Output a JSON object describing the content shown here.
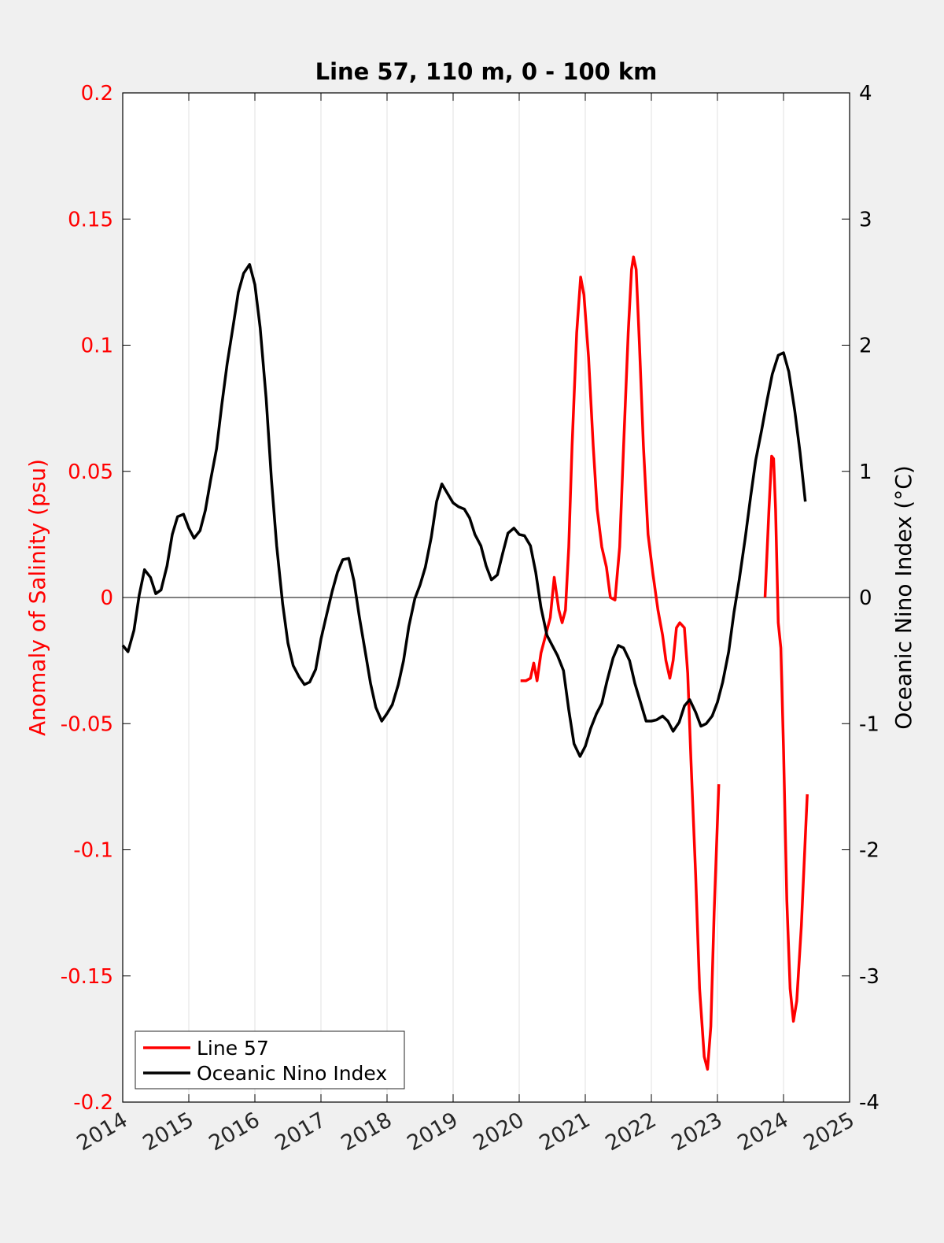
{
  "chart_data": {
    "type": "line",
    "title": "Line 57, 110 m, 0 - 100 km",
    "xlabel": "",
    "ylabel_left": "Anomaly of Salinity (psu)",
    "ylabel_right": "Oceanic Nino Index (°C)",
    "xlim": [
      2014,
      2025
    ],
    "ylim_left": [
      -0.2,
      0.2
    ],
    "ylim_right": [
      -4,
      4
    ],
    "x_ticks": [
      "2014",
      "2015",
      "2016",
      "2017",
      "2018",
      "2019",
      "2020",
      "2021",
      "2022",
      "2023",
      "2024",
      "2025"
    ],
    "y_ticks_left": [
      "0.2",
      "0.15",
      "0.1",
      "0.05",
      "0",
      "-0.05",
      "-0.1",
      "-0.15",
      "-0.2"
    ],
    "y_ticks_right": [
      "4",
      "3",
      "2",
      "1",
      "0",
      "-1",
      "-2",
      "-3",
      "-4"
    ],
    "grid": "vertical",
    "legend_placement": "bottom-left",
    "colors": {
      "line57": "#ff0000",
      "oni": "#000000",
      "left_axis": "#ff0000",
      "right_axis": "#000000"
    },
    "series": [
      {
        "name": "Line 57",
        "axis": "left",
        "color": "#ff0000",
        "segments": [
          [
            [
              2020.02,
              -0.033
            ],
            [
              2020.1,
              -0.033
            ],
            [
              2020.17,
              -0.032
            ],
            [
              2020.22,
              -0.026
            ],
            [
              2020.27,
              -0.033
            ],
            [
              2020.33,
              -0.022
            ],
            [
              2020.4,
              -0.015
            ],
            [
              2020.47,
              -0.008
            ],
            [
              2020.53,
              0.008
            ],
            [
              2020.6,
              -0.005
            ],
            [
              2020.65,
              -0.01
            ],
            [
              2020.7,
              -0.005
            ],
            [
              2020.75,
              0.02
            ],
            [
              2020.8,
              0.06
            ],
            [
              2020.87,
              0.105
            ],
            [
              2020.93,
              0.127
            ],
            [
              2020.98,
              0.12
            ],
            [
              2021.05,
              0.095
            ],
            [
              2021.12,
              0.06
            ],
            [
              2021.18,
              0.035
            ],
            [
              2021.25,
              0.02
            ],
            [
              2021.32,
              0.012
            ],
            [
              2021.38,
              0.0
            ],
            [
              2021.45,
              -0.001
            ],
            [
              2021.52,
              0.02
            ],
            [
              2021.58,
              0.06
            ],
            [
              2021.65,
              0.105
            ],
            [
              2021.7,
              0.13
            ],
            [
              2021.73,
              0.135
            ],
            [
              2021.77,
              0.13
            ],
            [
              2021.82,
              0.1
            ],
            [
              2021.88,
              0.06
            ],
            [
              2021.95,
              0.025
            ],
            [
              2022.02,
              0.01
            ],
            [
              2022.1,
              -0.005
            ],
            [
              2022.17,
              -0.015
            ],
            [
              2022.22,
              -0.025
            ],
            [
              2022.28,
              -0.032
            ],
            [
              2022.33,
              -0.025
            ],
            [
              2022.38,
              -0.012
            ],
            [
              2022.43,
              -0.01
            ],
            [
              2022.5,
              -0.012
            ],
            [
              2022.55,
              -0.03
            ],
            [
              2022.6,
              -0.065
            ],
            [
              2022.67,
              -0.11
            ],
            [
              2022.73,
              -0.155
            ],
            [
              2022.8,
              -0.182
            ],
            [
              2022.85,
              -0.187
            ],
            [
              2022.9,
              -0.17
            ],
            [
              2022.95,
              -0.125
            ],
            [
              2023.02,
              -0.074
            ]
          ],
          [
            [
              2023.72,
              0.0
            ],
            [
              2023.78,
              0.035
            ],
            [
              2023.82,
              0.056
            ],
            [
              2023.85,
              0.055
            ],
            [
              2023.88,
              0.035
            ],
            [
              2023.92,
              -0.01
            ],
            [
              2023.96,
              -0.02
            ],
            [
              2024.0,
              -0.06
            ],
            [
              2024.05,
              -0.12
            ],
            [
              2024.1,
              -0.155
            ],
            [
              2024.15,
              -0.168
            ],
            [
              2024.2,
              -0.16
            ],
            [
              2024.27,
              -0.13
            ],
            [
              2024.33,
              -0.095
            ],
            [
              2024.36,
              -0.078
            ]
          ]
        ]
      },
      {
        "name": "Oceanic Nino Index",
        "axis": "right",
        "color": "#000000",
        "segments": [
          [
            [
              2014.0,
              -0.38
            ],
            [
              2014.08,
              -0.43
            ],
            [
              2014.17,
              -0.26
            ],
            [
              2014.25,
              0.02
            ],
            [
              2014.33,
              0.22
            ],
            [
              2014.42,
              0.16
            ],
            [
              2014.5,
              0.03
            ],
            [
              2014.58,
              0.06
            ],
            [
              2014.67,
              0.25
            ],
            [
              2014.75,
              0.5
            ],
            [
              2014.83,
              0.64
            ],
            [
              2014.92,
              0.66
            ],
            [
              2015.0,
              0.55
            ],
            [
              2015.08,
              0.47
            ],
            [
              2015.17,
              0.53
            ],
            [
              2015.25,
              0.69
            ],
            [
              2015.33,
              0.93
            ],
            [
              2015.42,
              1.18
            ],
            [
              2015.5,
              1.53
            ],
            [
              2015.58,
              1.85
            ],
            [
              2015.67,
              2.15
            ],
            [
              2015.75,
              2.42
            ],
            [
              2015.83,
              2.57
            ],
            [
              2015.92,
              2.64
            ],
            [
              2016.0,
              2.48
            ],
            [
              2016.08,
              2.14
            ],
            [
              2016.17,
              1.58
            ],
            [
              2016.25,
              0.94
            ],
            [
              2016.33,
              0.41
            ],
            [
              2016.42,
              -0.05
            ],
            [
              2016.5,
              -0.36
            ],
            [
              2016.58,
              -0.54
            ],
            [
              2016.67,
              -0.63
            ],
            [
              2016.75,
              -0.69
            ],
            [
              2016.83,
              -0.67
            ],
            [
              2016.92,
              -0.57
            ],
            [
              2017.0,
              -0.33
            ],
            [
              2017.08,
              -0.15
            ],
            [
              2017.17,
              0.05
            ],
            [
              2017.25,
              0.2
            ],
            [
              2017.33,
              0.3
            ],
            [
              2017.42,
              0.31
            ],
            [
              2017.5,
              0.13
            ],
            [
              2017.58,
              -0.15
            ],
            [
              2017.67,
              -0.43
            ],
            [
              2017.75,
              -0.68
            ],
            [
              2017.83,
              -0.87
            ],
            [
              2017.92,
              -0.98
            ],
            [
              2018.0,
              -0.92
            ],
            [
              2018.08,
              -0.85
            ],
            [
              2018.17,
              -0.69
            ],
            [
              2018.25,
              -0.5
            ],
            [
              2018.33,
              -0.23
            ],
            [
              2018.42,
              -0.01
            ],
            [
              2018.5,
              0.1
            ],
            [
              2018.58,
              0.24
            ],
            [
              2018.67,
              0.48
            ],
            [
              2018.75,
              0.76
            ],
            [
              2018.83,
              0.9
            ],
            [
              2018.92,
              0.82
            ],
            [
              2019.0,
              0.75
            ],
            [
              2019.08,
              0.72
            ],
            [
              2019.17,
              0.7
            ],
            [
              2019.25,
              0.63
            ],
            [
              2019.33,
              0.5
            ],
            [
              2019.42,
              0.41
            ],
            [
              2019.5,
              0.25
            ],
            [
              2019.58,
              0.14
            ],
            [
              2019.67,
              0.18
            ],
            [
              2019.75,
              0.35
            ],
            [
              2019.83,
              0.51
            ],
            [
              2019.92,
              0.55
            ],
            [
              2020.0,
              0.5
            ],
            [
              2020.08,
              0.49
            ],
            [
              2020.17,
              0.41
            ],
            [
              2020.25,
              0.2
            ],
            [
              2020.33,
              -0.08
            ],
            [
              2020.42,
              -0.3
            ],
            [
              2020.5,
              -0.38
            ],
            [
              2020.58,
              -0.46
            ],
            [
              2020.67,
              -0.58
            ],
            [
              2020.75,
              -0.89
            ],
            [
              2020.83,
              -1.16
            ],
            [
              2020.92,
              -1.26
            ],
            [
              2021.0,
              -1.18
            ],
            [
              2021.08,
              -1.04
            ],
            [
              2021.17,
              -0.92
            ],
            [
              2021.25,
              -0.84
            ],
            [
              2021.33,
              -0.66
            ],
            [
              2021.42,
              -0.48
            ],
            [
              2021.5,
              -0.38
            ],
            [
              2021.58,
              -0.4
            ],
            [
              2021.67,
              -0.5
            ],
            [
              2021.75,
              -0.68
            ],
            [
              2021.83,
              -0.82
            ],
            [
              2021.92,
              -0.98
            ],
            [
              2022.0,
              -0.98
            ],
            [
              2022.08,
              -0.97
            ],
            [
              2022.17,
              -0.94
            ],
            [
              2022.25,
              -0.98
            ],
            [
              2022.33,
              -1.06
            ],
            [
              2022.42,
              -0.99
            ],
            [
              2022.5,
              -0.86
            ],
            [
              2022.58,
              -0.81
            ],
            [
              2022.67,
              -0.91
            ],
            [
              2022.75,
              -1.02
            ],
            [
              2022.83,
              -1.0
            ],
            [
              2022.92,
              -0.94
            ],
            [
              2023.0,
              -0.83
            ],
            [
              2023.08,
              -0.67
            ],
            [
              2023.17,
              -0.43
            ],
            [
              2023.25,
              -0.12
            ],
            [
              2023.33,
              0.14
            ],
            [
              2023.42,
              0.47
            ],
            [
              2023.5,
              0.79
            ],
            [
              2023.58,
              1.09
            ],
            [
              2023.67,
              1.33
            ],
            [
              2023.75,
              1.56
            ],
            [
              2023.83,
              1.77
            ],
            [
              2023.92,
              1.92
            ],
            [
              2024.0,
              1.94
            ],
            [
              2024.08,
              1.79
            ],
            [
              2024.17,
              1.48
            ],
            [
              2024.25,
              1.15
            ],
            [
              2024.33,
              0.76
            ]
          ]
        ]
      }
    ]
  }
}
